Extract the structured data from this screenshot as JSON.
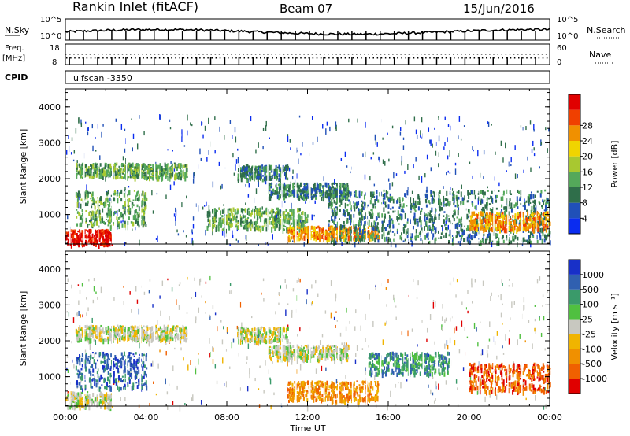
{
  "header": {
    "station": "Rankin Inlet (fitACF)",
    "beam": "Beam 07",
    "date": "15/Jun/2016"
  },
  "status_panel": {
    "left": {
      "nsky": "N.Sky",
      "freq": "Freq.",
      "freq_unit": "[MHz]",
      "cpid": "CPID"
    },
    "right": {
      "nsearch": "N.Search",
      "nave": "Nave"
    },
    "noise_ticks_left": [
      "10^5",
      "10^0"
    ],
    "noise_ticks_right": [
      "10^5",
      "10^0"
    ],
    "freq_ticks": [
      "18",
      "8"
    ],
    "nave_ticks": [
      "60",
      "0"
    ],
    "cpid_label": "ulfscan -3350"
  },
  "chart_data": [
    {
      "type": "heatmap",
      "name": "power",
      "ylabel": "Slant Range [km]",
      "ylim": [
        180,
        4500
      ],
      "yticks": [
        "1000",
        "2000",
        "3000",
        "4000"
      ],
      "xlim": [
        "00:00",
        "24:00"
      ],
      "colorbar": {
        "label": "Power [dB]",
        "levels": [
          "4",
          "8",
          "12",
          "16",
          "20",
          "24",
          "28"
        ],
        "colors": [
          "#0a2cf0",
          "#2050b8",
          "#2f6e4a",
          "#54a85a",
          "#a8c830",
          "#f0d400",
          "#f09000",
          "#f04000",
          "#e00000"
        ]
      },
      "range_bands": [
        {
          "from": 0,
          "to": 2.3,
          "lo": 180,
          "hi": 600,
          "level": 8
        },
        {
          "from": 0.5,
          "to": 6,
          "lo": 2050,
          "hi": 2450,
          "level": 3
        },
        {
          "from": 0.5,
          "to": 4,
          "lo": 700,
          "hi": 1700,
          "level": 3
        },
        {
          "from": 8.5,
          "to": 11,
          "lo": 2000,
          "hi": 2400,
          "level": 2
        },
        {
          "from": 10,
          "to": 14,
          "lo": 1500,
          "hi": 1900,
          "level": 2
        },
        {
          "from": 7,
          "to": 12,
          "lo": 600,
          "hi": 1200,
          "level": 3
        },
        {
          "from": 11,
          "to": 15.5,
          "lo": 350,
          "hi": 700,
          "level": 6
        },
        {
          "from": 13,
          "to": 24,
          "lo": 250,
          "hi": 1700,
          "level": 2
        },
        {
          "from": 20,
          "to": 24,
          "lo": 600,
          "hi": 1100,
          "level": 6
        }
      ]
    },
    {
      "type": "heatmap",
      "name": "velocity",
      "ylabel": "Slant Range [km]",
      "ylim": [
        180,
        4500
      ],
      "yticks": [
        "1000",
        "2000",
        "3000",
        "4000"
      ],
      "xlim": [
        "00:00",
        "24:00"
      ],
      "xlabel": "Time UT",
      "xticks": [
        "00:00",
        "04:00",
        "08:00",
        "12:00",
        "16:00",
        "20:00",
        "00:00"
      ],
      "colorbar": {
        "label": "Velocity [m s⁻¹]",
        "levels": [
          "-1000",
          "-500",
          "-100",
          "-25",
          "25",
          "100",
          "500",
          "1000"
        ],
        "colors": [
          "#e00000",
          "#f06000",
          "#f09000",
          "#f0b400",
          "#c8c8c0",
          "#50c040",
          "#3a9a6a",
          "#3060b0",
          "#1830c8"
        ]
      },
      "range_bands": [
        {
          "from": 0,
          "to": 2.3,
          "lo": 180,
          "hi": 600,
          "level": 4
        },
        {
          "from": 0.5,
          "to": 6,
          "lo": 2050,
          "hi": 2450,
          "level": 4
        },
        {
          "from": 0.5,
          "to": 4,
          "lo": 700,
          "hi": 1700,
          "level": 7
        },
        {
          "from": 8.5,
          "to": 11,
          "lo": 2000,
          "hi": 2400,
          "level": 4
        },
        {
          "from": 10,
          "to": 14,
          "lo": 1500,
          "hi": 1900,
          "level": 4
        },
        {
          "from": 11,
          "to": 15.5,
          "lo": 350,
          "hi": 900,
          "level": 2
        },
        {
          "from": 15,
          "to": 19,
          "lo": 1100,
          "hi": 1700,
          "level": 6
        },
        {
          "from": 20,
          "to": 24,
          "lo": 600,
          "hi": 1400,
          "level": 1
        }
      ]
    }
  ]
}
